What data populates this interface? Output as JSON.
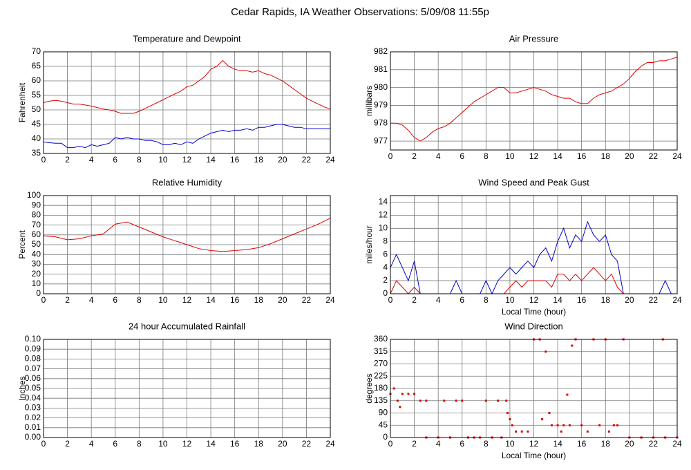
{
  "title": "Cedar Rapids, IA Weather Observations: 5/09/08 11:55p",
  "chart_data": [
    {
      "type": "line",
      "title": "Temperature and Dewpoint",
      "ylabel": "Fahrenheit",
      "x": [
        0,
        0.5,
        1,
        1.5,
        2,
        2.5,
        3,
        3.5,
        4,
        4.5,
        5,
        5.5,
        6,
        6.5,
        7,
        7.5,
        8,
        8.5,
        9,
        9.5,
        10,
        10.5,
        11,
        11.5,
        12,
        12.5,
        13,
        13.5,
        14,
        14.5,
        15,
        15.5,
        16,
        16.5,
        17,
        17.5,
        18,
        18.5,
        19,
        19.5,
        20,
        20.5,
        21,
        21.5,
        22,
        22.5,
        23,
        23.5,
        24
      ],
      "series": [
        {
          "color": "#dd0000",
          "values": [
            52.5,
            53,
            53.3,
            53,
            52.5,
            52,
            52,
            51.7,
            51.3,
            50.8,
            50.3,
            50,
            49.5,
            48.8,
            48.8,
            48.8,
            49.5,
            50.5,
            51.5,
            52.5,
            53.5,
            54.5,
            55.5,
            56.5,
            58,
            58.5,
            60,
            61.5,
            64,
            65,
            67,
            65,
            64,
            63.5,
            63.5,
            63,
            63.5,
            62.5,
            62,
            61,
            60,
            58.5,
            57,
            55.5,
            54,
            53,
            52,
            51,
            50.3
          ]
        },
        {
          "color": "#0000cc",
          "values": [
            39,
            38.7,
            38.5,
            38.5,
            37,
            37,
            37.5,
            37,
            38,
            37.5,
            38,
            38.5,
            40.5,
            40,
            40.5,
            40,
            40,
            39.5,
            39.5,
            39,
            38,
            38,
            38.5,
            38,
            39,
            38.5,
            40,
            41,
            42,
            42.5,
            43,
            42.5,
            43,
            43,
            43.5,
            43,
            44,
            44,
            44.5,
            45,
            45,
            44.5,
            44,
            44,
            43.5,
            43.5,
            43.5,
            43.5,
            43.5
          ]
        }
      ],
      "xlim": [
        0,
        24
      ],
      "ylim": [
        35,
        70
      ],
      "xticks": [
        0,
        2,
        4,
        6,
        8,
        10,
        12,
        14,
        16,
        18,
        20,
        22,
        24
      ],
      "yticks": [
        35,
        40,
        45,
        50,
        55,
        60,
        65,
        70
      ],
      "grid": true
    },
    {
      "type": "line",
      "title": "Air Pressure",
      "ylabel": "millibars",
      "x": [
        0,
        0.5,
        1,
        1.5,
        2,
        2.5,
        3,
        3.5,
        4,
        4.5,
        5,
        5.5,
        6,
        6.5,
        7,
        7.5,
        8,
        8.5,
        9,
        9.5,
        10,
        10.5,
        11,
        11.5,
        12,
        12.5,
        13,
        13.5,
        14,
        14.5,
        15,
        15.5,
        16,
        16.5,
        17,
        17.5,
        18,
        18.5,
        19,
        19.5,
        20,
        20.5,
        21,
        21.5,
        22,
        22.5,
        23,
        23.5,
        24
      ],
      "series": [
        {
          "color": "#dd0000",
          "values": [
            978,
            978,
            977.9,
            977.6,
            977.2,
            977,
            977.2,
            977.5,
            977.7,
            977.8,
            978,
            978.3,
            978.6,
            978.9,
            979.2,
            979.4,
            979.6,
            979.8,
            980,
            980,
            979.7,
            979.7,
            979.8,
            979.9,
            980,
            979.9,
            979.8,
            979.6,
            979.5,
            979.4,
            979.4,
            979.2,
            979.1,
            979.1,
            979.4,
            979.6,
            979.7,
            979.8,
            980,
            980.2,
            980.5,
            980.9,
            981.2,
            981.4,
            981.4,
            981.5,
            981.5,
            981.6,
            981.7
          ]
        }
      ],
      "xlim": [
        0,
        24
      ],
      "ylim": [
        976.5,
        982
      ],
      "xticks": [
        0,
        2,
        4,
        6,
        8,
        10,
        12,
        14,
        16,
        18,
        20,
        22,
        24
      ],
      "yticks": [
        977,
        978,
        979,
        980,
        981,
        982
      ],
      "grid": true
    },
    {
      "type": "line",
      "title": "Relative Humidity",
      "ylabel": "Percent",
      "x": [
        0,
        1,
        2,
        3,
        4,
        5,
        6,
        7,
        8,
        9,
        10,
        11,
        12,
        13,
        14,
        15,
        16,
        17,
        18,
        19,
        20,
        21,
        22,
        23,
        24
      ],
      "series": [
        {
          "color": "#dd0000",
          "values": [
            59,
            58,
            55,
            56,
            59,
            61,
            71,
            73,
            68,
            63,
            58,
            54,
            50,
            46,
            44,
            43,
            44,
            45,
            47,
            51,
            56,
            61,
            66,
            71,
            77
          ]
        }
      ],
      "xlim": [
        0,
        24
      ],
      "ylim": [
        0,
        100
      ],
      "xticks": [
        0,
        2,
        4,
        6,
        8,
        10,
        12,
        14,
        16,
        18,
        20,
        22,
        24
      ],
      "yticks": [
        0,
        10,
        20,
        30,
        40,
        50,
        60,
        70,
        80,
        90,
        100
      ],
      "grid": true
    },
    {
      "type": "line",
      "title": "Wind Speed and Peak Gust",
      "ylabel": "miles/hour",
      "xlabel": "Local Time (hour)",
      "x": [
        0,
        0.5,
        1,
        1.5,
        2,
        2.5,
        3,
        3.5,
        4,
        4.5,
        5,
        5.5,
        6,
        6.5,
        7,
        7.5,
        8,
        8.5,
        9,
        9.5,
        10,
        10.5,
        11,
        11.5,
        12,
        12.5,
        13,
        13.5,
        14,
        14.5,
        15,
        15.5,
        16,
        16.5,
        17,
        17.5,
        18,
        18.5,
        19,
        19.5,
        20,
        20.5,
        21,
        21.5,
        22,
        22.5,
        23,
        23.5,
        24
      ],
      "series": [
        {
          "color": "#0000cc",
          "values": [
            4,
            6,
            4,
            2,
            5,
            0,
            0,
            0,
            0,
            0,
            0,
            2,
            0,
            0,
            0,
            0,
            2,
            0,
            2,
            3,
            4,
            3,
            4,
            5,
            4,
            6,
            7,
            5,
            8,
            10,
            7,
            9,
            8,
            11,
            9,
            8,
            9,
            6,
            5,
            0,
            0,
            0,
            0,
            0,
            0,
            0,
            2,
            0,
            0
          ]
        },
        {
          "color": "#dd0000",
          "values": [
            0,
            2,
            1,
            0,
            1,
            0,
            0,
            0,
            0,
            0,
            0,
            0,
            0,
            0,
            0,
            0,
            0,
            0,
            0,
            0,
            1,
            2,
            1,
            2,
            2,
            2,
            2,
            1,
            3,
            3,
            2,
            3,
            2,
            3,
            4,
            3,
            2,
            3,
            1,
            0,
            0,
            0,
            0,
            0,
            0,
            0,
            0,
            0,
            0
          ]
        }
      ],
      "xlim": [
        0,
        24
      ],
      "ylim": [
        0,
        15
      ],
      "xticks": [
        0,
        2,
        4,
        6,
        8,
        10,
        12,
        14,
        16,
        18,
        20,
        22,
        24
      ],
      "yticks": [
        0,
        2,
        4,
        6,
        8,
        10,
        12,
        14
      ],
      "grid": true
    },
    {
      "type": "line",
      "title": "24 hour Accumulated Rainfall",
      "ylabel": "Inches",
      "x": [
        0,
        24
      ],
      "series": [
        {
          "color": "#dd0000",
          "values": [
            0,
            0
          ]
        }
      ],
      "xlim": [
        0,
        24
      ],
      "ylim": [
        0,
        0.1
      ],
      "xticks": [
        0,
        2,
        4,
        6,
        8,
        10,
        12,
        14,
        16,
        18,
        20,
        22,
        24
      ],
      "yticks": [
        {
          "value": 0,
          "label": "0.00"
        },
        0.01,
        0.02,
        0.03,
        0.04,
        0.05,
        0.06,
        0.07,
        0.08,
        0.09,
        {
          "value": 0.1,
          "label": "0.10"
        }
      ],
      "grid": true
    },
    {
      "type": "scatter",
      "title": "Wind Direction",
      "ylabel": "degrees",
      "xlabel": "Local Time (hour)",
      "x": [
        0,
        0.3,
        0.6,
        0.8,
        1,
        1.5,
        2,
        2.5,
        3,
        3,
        4,
        4.5,
        5,
        5.5,
        6,
        6.5,
        7,
        7.5,
        8,
        8.5,
        9,
        9.3,
        9.7,
        9.8,
        10,
        10.2,
        10.5,
        11,
        11.5,
        12,
        12.5,
        12.7,
        13,
        13.3,
        13.5,
        14,
        14.3,
        14.5,
        14.8,
        15,
        15.2,
        15.5,
        16,
        16.5,
        17,
        17.5,
        18,
        18.3,
        18.7,
        19,
        19.5,
        20,
        21,
        22,
        22.8,
        23,
        24
      ],
      "series": [
        {
          "color": "#dd0000",
          "values": [
            160,
            180,
            135,
            112,
            160,
            160,
            160,
            135,
            135,
            0,
            0,
            135,
            0,
            135,
            135,
            0,
            0,
            0,
            135,
            0,
            135,
            0,
            135,
            90,
            67,
            45,
            22,
            22,
            22,
            360,
            360,
            67,
            315,
            90,
            45,
            45,
            22,
            45,
            157,
            45,
            337,
            360,
            45,
            22,
            360,
            45,
            360,
            22,
            45,
            45,
            360,
            0,
            0,
            0,
            360,
            0,
            0
          ]
        }
      ],
      "xlim": [
        0,
        24
      ],
      "ylim": [
        0,
        360
      ],
      "xticks": [
        0,
        2,
        4,
        6,
        8,
        10,
        12,
        14,
        16,
        18,
        20,
        22,
        24
      ],
      "yticks": [
        0,
        45,
        90,
        135,
        180,
        225,
        270,
        315,
        360
      ],
      "grid": true
    }
  ]
}
